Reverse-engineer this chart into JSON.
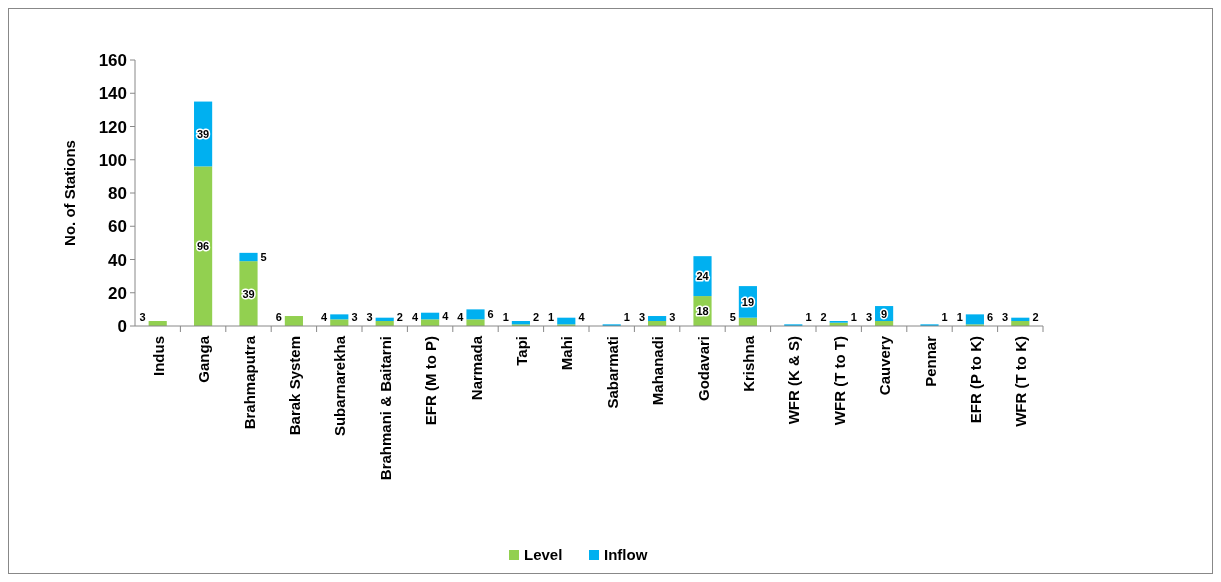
{
  "chart_data": {
    "type": "bar",
    "stacked": true,
    "ylabel": "No. of Stations",
    "categories": [
      "Indus",
      "Ganga",
      "Brahmaputra",
      "Barak System",
      "Subarnarekha",
      "Brahmani & Baitarni",
      "EFR (M to P)",
      "Narmada",
      "Tapi",
      "Mahi",
      "Sabarmati",
      "Mahanadi",
      "Godavari",
      "Krishna",
      "WFR (K & S)",
      "WFR (T to T)",
      "Cauvery",
      "Pennar",
      "EFR (P to K)",
      "WFR (T to K)"
    ],
    "series": [
      {
        "name": "Level",
        "color": "#92d050",
        "values": [
          3,
          96,
          39,
          6,
          4,
          3,
          4,
          4,
          1,
          1,
          null,
          3,
          18,
          5,
          null,
          2,
          3,
          null,
          1,
          3
        ]
      },
      {
        "name": "Inflow",
        "color": "#00b0f0",
        "values": [
          null,
          39,
          5,
          null,
          3,
          2,
          4,
          6,
          2,
          4,
          1,
          3,
          24,
          19,
          1,
          1,
          9,
          1,
          6,
          2
        ]
      }
    ],
    "ylim": [
      0,
      160
    ],
    "yticks": [
      0,
      20,
      40,
      60,
      80,
      100,
      120,
      140,
      160
    ],
    "data_labels": true,
    "legend": "bottom",
    "grid": false
  }
}
